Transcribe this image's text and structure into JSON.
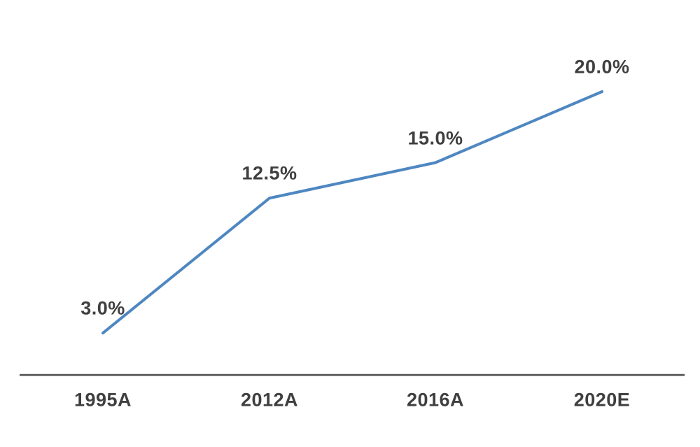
{
  "chart_data": {
    "type": "line",
    "categories": [
      "1995A",
      "2012A",
      "2016A",
      "2020E"
    ],
    "values": [
      3.0,
      12.5,
      15.0,
      20.0
    ],
    "data_labels": [
      "3.0%",
      "12.5%",
      "15.0%",
      "20.0%"
    ],
    "title": "",
    "xlabel": "",
    "ylabel": "",
    "ylim": [
      0,
      22
    ],
    "grid": false,
    "legend_position": "none",
    "line_color": "#4e87c1",
    "axis_line_color": "#4d4d4d",
    "label_color": "#3f3f3f",
    "background_color": "#ffffff"
  }
}
